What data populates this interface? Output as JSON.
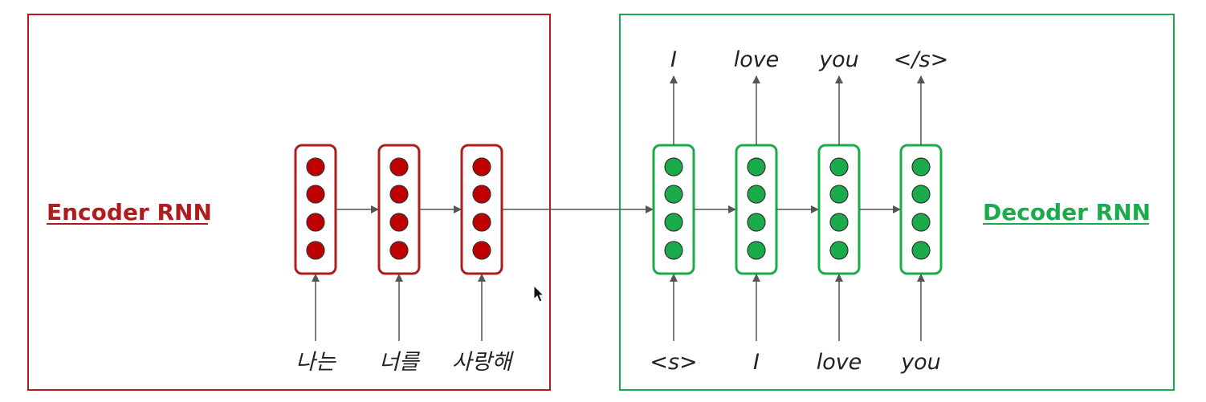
{
  "colors": {
    "encoder": "#b01c1c",
    "encoder_node": "#c00000",
    "decoder": "#1aab4b",
    "decoder_node": "#1aab4b",
    "arrow": "#555555",
    "text": "#222222"
  },
  "encoder": {
    "title": "Encoder RNN",
    "inputs": [
      "나는",
      "너를",
      "사랑해"
    ]
  },
  "decoder": {
    "title": "Decoder RNN",
    "inputs": [
      "<s>",
      "I",
      "love",
      "you"
    ],
    "outputs": [
      "I",
      "love",
      "you",
      "</s>"
    ]
  },
  "icons": [
    "mouse-cursor-icon"
  ]
}
